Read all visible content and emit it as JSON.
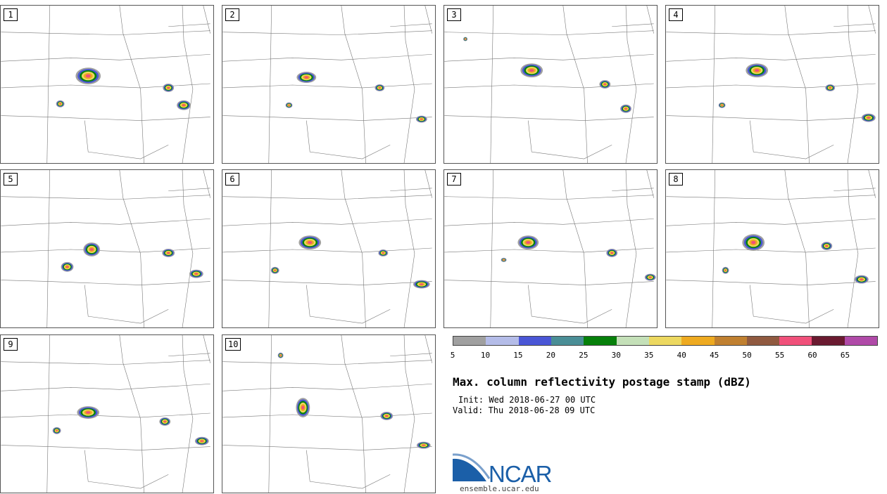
{
  "panels": [
    {
      "label": "1"
    },
    {
      "label": "2"
    },
    {
      "label": "3"
    },
    {
      "label": "4"
    },
    {
      "label": "5"
    },
    {
      "label": "6"
    },
    {
      "label": "7"
    },
    {
      "label": "8"
    },
    {
      "label": "9"
    },
    {
      "label": "10"
    }
  ],
  "colorbar": {
    "colors": [
      "#a0a0a0",
      "#b4bce8",
      "#4a56d6",
      "#4a8e96",
      "#06800a",
      "#c4e0b8",
      "#ecd860",
      "#eeaa20",
      "#c08030",
      "#905a40",
      "#f0507a",
      "#6a1a30",
      "#b04aa8"
    ],
    "ticks": [
      "5",
      "10",
      "15",
      "20",
      "25",
      "30",
      "35",
      "40",
      "45",
      "50",
      "55",
      "60",
      "65"
    ]
  },
  "title": "Max. column reflectivity postage stamp (dBZ)",
  "init_line": "Init: Wed 2018-06-27 00 UTC",
  "valid_line": "Valid: Thu 2018-06-28 09 UTC",
  "logo": {
    "text": "NCAR",
    "url": "ensemble.ucar.edu"
  }
}
